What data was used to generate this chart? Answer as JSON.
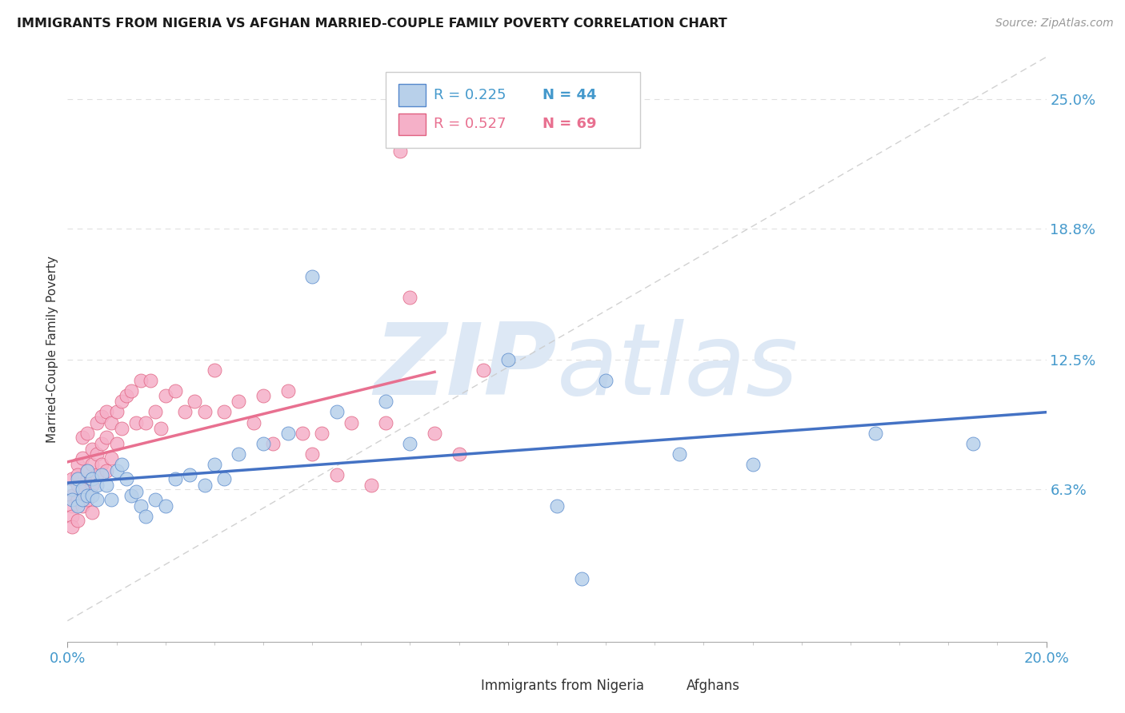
{
  "title": "IMMIGRANTS FROM NIGERIA VS AFGHAN MARRIED-COUPLE FAMILY POVERTY CORRELATION CHART",
  "source": "Source: ZipAtlas.com",
  "ylabel": "Married-Couple Family Poverty",
  "legend_label_nigeria": "Immigrants from Nigeria",
  "legend_label_afghan": "Afghans",
  "legend_R_nigeria": "R = 0.225",
  "legend_N_nigeria": "N = 44",
  "legend_R_afghan": "R = 0.527",
  "legend_N_afghan": "N = 69",
  "xlim": [
    0.0,
    0.2
  ],
  "ylim": [
    -0.01,
    0.27
  ],
  "ytick_positions": [
    0.063,
    0.125,
    0.188,
    0.25
  ],
  "ytick_labels": [
    "6.3%",
    "12.5%",
    "18.8%",
    "25.0%"
  ],
  "color_nigeria_fill": "#b8d0ea",
  "color_nigeria_edge": "#5588cc",
  "color_afghan_fill": "#f5b0c8",
  "color_afghan_edge": "#e06080",
  "color_nigeria_line": "#4472c4",
  "color_afghan_line": "#e87090",
  "color_diag_line": "#cccccc",
  "color_axis_blue": "#4499cc",
  "color_legend_R_nigeria": "#4499cc",
  "color_legend_N_nigeria": "#4499cc",
  "color_legend_R_afghan": "#e87090",
  "color_legend_N_afghan": "#e87090",
  "watermark_color": "#dde8f5",
  "nigeria_x": [
    0.001,
    0.001,
    0.002,
    0.002,
    0.003,
    0.003,
    0.004,
    0.004,
    0.005,
    0.005,
    0.006,
    0.006,
    0.007,
    0.008,
    0.009,
    0.01,
    0.011,
    0.012,
    0.013,
    0.014,
    0.015,
    0.016,
    0.018,
    0.02,
    0.022,
    0.025,
    0.028,
    0.03,
    0.032,
    0.035,
    0.04,
    0.045,
    0.05,
    0.055,
    0.065,
    0.07,
    0.09,
    0.1,
    0.105,
    0.11,
    0.125,
    0.14,
    0.165,
    0.185
  ],
  "nigeria_y": [
    0.063,
    0.058,
    0.068,
    0.055,
    0.063,
    0.058,
    0.072,
    0.06,
    0.068,
    0.06,
    0.065,
    0.058,
    0.07,
    0.065,
    0.058,
    0.072,
    0.075,
    0.068,
    0.06,
    0.062,
    0.055,
    0.05,
    0.058,
    0.055,
    0.068,
    0.07,
    0.065,
    0.075,
    0.068,
    0.08,
    0.085,
    0.09,
    0.165,
    0.1,
    0.105,
    0.085,
    0.125,
    0.055,
    0.02,
    0.115,
    0.08,
    0.075,
    0.09,
    0.085
  ],
  "afghan_x": [
    0.001,
    0.001,
    0.001,
    0.001,
    0.001,
    0.002,
    0.002,
    0.002,
    0.002,
    0.002,
    0.003,
    0.003,
    0.003,
    0.003,
    0.004,
    0.004,
    0.004,
    0.004,
    0.005,
    0.005,
    0.005,
    0.005,
    0.006,
    0.006,
    0.006,
    0.007,
    0.007,
    0.007,
    0.008,
    0.008,
    0.008,
    0.009,
    0.009,
    0.01,
    0.01,
    0.011,
    0.011,
    0.012,
    0.013,
    0.014,
    0.015,
    0.016,
    0.017,
    0.018,
    0.019,
    0.02,
    0.022,
    0.024,
    0.026,
    0.028,
    0.03,
    0.032,
    0.035,
    0.038,
    0.04,
    0.042,
    0.045,
    0.048,
    0.05,
    0.052,
    0.055,
    0.058,
    0.062,
    0.065,
    0.068,
    0.07,
    0.075,
    0.08,
    0.085
  ],
  "afghan_y": [
    0.06,
    0.055,
    0.068,
    0.05,
    0.045,
    0.065,
    0.058,
    0.075,
    0.048,
    0.07,
    0.063,
    0.078,
    0.055,
    0.088,
    0.068,
    0.072,
    0.058,
    0.09,
    0.075,
    0.065,
    0.082,
    0.052,
    0.08,
    0.095,
    0.07,
    0.085,
    0.098,
    0.075,
    0.088,
    0.1,
    0.072,
    0.095,
    0.078,
    0.1,
    0.085,
    0.105,
    0.092,
    0.108,
    0.11,
    0.095,
    0.115,
    0.095,
    0.115,
    0.1,
    0.092,
    0.108,
    0.11,
    0.1,
    0.105,
    0.1,
    0.12,
    0.1,
    0.105,
    0.095,
    0.108,
    0.085,
    0.11,
    0.09,
    0.08,
    0.09,
    0.07,
    0.095,
    0.065,
    0.095,
    0.225,
    0.155,
    0.09,
    0.08,
    0.12
  ]
}
